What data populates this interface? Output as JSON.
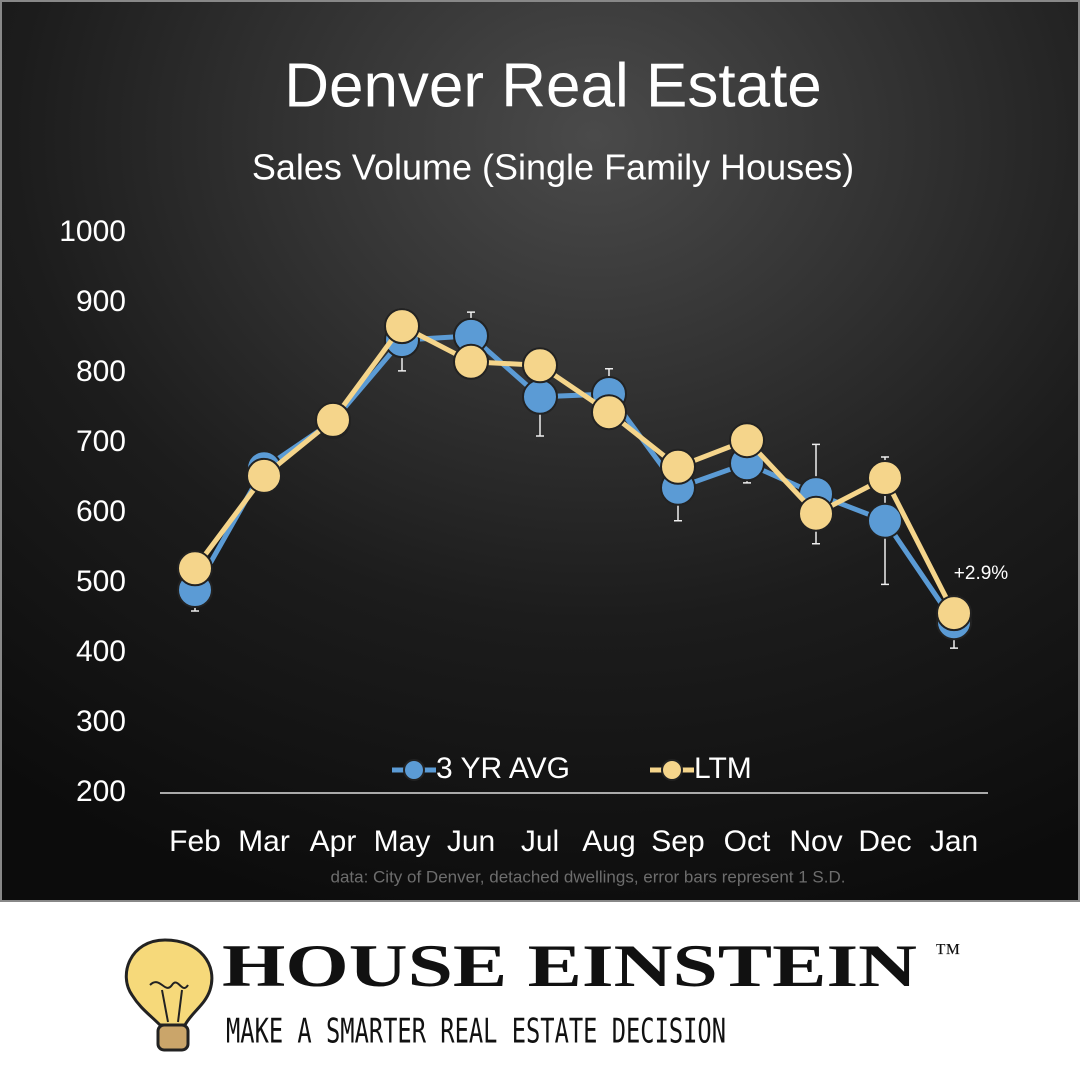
{
  "chart_data": {
    "type": "line",
    "title": "Denver Real Estate",
    "subtitle": "Sales Volume (Single Family Houses)",
    "categories": [
      "Feb",
      "Mar",
      "Apr",
      "May",
      "Jun",
      "Jul",
      "Aug",
      "Sep",
      "Oct",
      "Nov",
      "Dec",
      "Jan"
    ],
    "series": [
      {
        "name": "3 YR AVG",
        "color": "#5b9bd5",
        "values": [
          490,
          664,
          731,
          847,
          853,
          766,
          770,
          636,
          671,
          627,
          589,
          444
        ],
        "errors": [
          30,
          10,
          8,
          44,
          34,
          56,
          36,
          47,
          28,
          71,
          91,
          37
        ]
      },
      {
        "name": "LTM",
        "color": "#f5d58b",
        "values": [
          521,
          653,
          733,
          867,
          816,
          811,
          744,
          666,
          704,
          599,
          650,
          457
        ]
      }
    ],
    "ylim": [
      200,
      1000
    ],
    "yticks": [
      200,
      300,
      400,
      500,
      600,
      700,
      800,
      900,
      1000
    ],
    "annotation": "+2.9%",
    "note": "data: City of Denver, detached dwellings, error bars represent 1 S.D."
  },
  "branding": {
    "name": "HOUSE EINSTEIN",
    "trademark": "™",
    "tagline": "MAKE A SMARTER REAL ESTATE DECISION"
  }
}
